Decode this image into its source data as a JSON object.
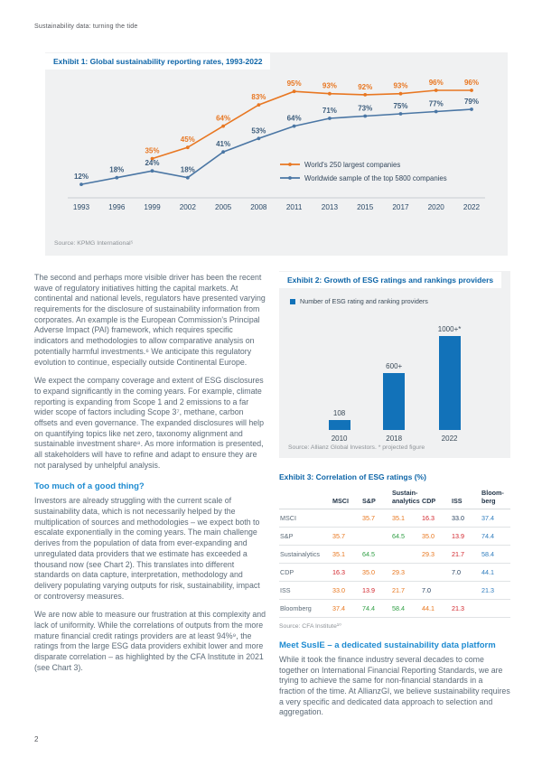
{
  "page": {
    "header": "Sustainability data: turning the tide",
    "page_number": "2"
  },
  "colors": {
    "exhibit_title_blue": "#0d65a8",
    "section_heading_blue": "#1e8bd1",
    "orange_series": "#e87722",
    "blue_series": "#4a76a4",
    "bar_blue": "#1272b9",
    "exhibit_background": "#f0f1f2"
  },
  "left_column": {
    "para1": "The second and perhaps more visible driver has been the recent wave of regulatory initiatives hitting the capital markets. At continental and national levels, regulators have presented varying requirements for the disclosure of sustainability information from corporates. An example is the European Commission's Principal Adverse Impact (PAI) framework, which requires specific indicators and methodologies to allow comparative analysis on potentially harmful investments.⁶ We anticipate this regulatory evolution to continue, especially outside Continental Europe.",
    "para2": "We expect the company coverage and extent of ESG disclosures to expand significantly in the coming years. For example, climate reporting is expanding from Scope 1 and 2 emissions to a far wider scope of factors including Scope 3⁷, methane, carbon offsets and even governance. The expanded disclosures will help on quantifying topics like net zero, taxonomy alignment and sustainable investment share⁸. As more information is presented, all stakeholders will have to refine and adapt to ensure they are not paralysed by unhelpful analysis.",
    "heading1": "Too much of a good thing?",
    "para3": "Investors are already struggling with the current scale of sustainability data, which is not necessarily helped by the multiplication of sources and methodologies – we expect both to escalate exponentially in the coming years. The main challenge derives from the population of data from ever-expanding and unregulated data providers that we estimate has exceeded a thousand now (see Chart 2). This translates into different standards on data capture, interpretation, methodology and delivery populating varying outputs for risk, sustainability, impact or controversy measures.",
    "para4": "We are now able to measure our frustration at this complexity and lack of uniformity. While the correlations of outputs from the more mature financial credit ratings providers are at least 94%⁹, the ratings from the large ESG data providers exhibit lower and more disparate correlation – as highlighted by the CFA Institute in 2021 (see Chart 3)."
  },
  "right_column": {
    "heading2": "Meet SusIE – a dedicated sustainability data platform",
    "para5": "While it took the finance industry several decades to come together on International Financial Reporting Standards, we are trying to achieve the same for non-financial standards in a fraction of the time. At AllianzGI, we believe sustainability requires a very specific and dedicated data approach to selection and aggregation."
  },
  "chart_data": [
    {
      "type": "line",
      "title": "Exhibit 1: Global sustainability reporting rates, 1993-2022",
      "x": [
        "1993",
        "1996",
        "1999",
        "2002",
        "2005",
        "2008",
        "2011",
        "2013",
        "2015",
        "2017",
        "2020",
        "2022"
      ],
      "series": [
        {
          "name": "World's 250 largest companies",
          "color": "#e87722",
          "label_color": "#e87722",
          "values": [
            null,
            null,
            35,
            45,
            64,
            83,
            95,
            93,
            92,
            93,
            96,
            96
          ]
        },
        {
          "name": "Worldwide sample of the top 5800 companies",
          "color": "#4a76a4",
          "label_color": "#3d5d7c",
          "values": [
            12,
            18,
            24,
            18,
            41,
            53,
            64,
            71,
            73,
            75,
            77,
            79
          ]
        }
      ],
      "ylim": [
        0,
        100
      ],
      "value_suffix": "%",
      "grid": false,
      "legend_position": "right-middle",
      "source": "Source: KPMG International⁵"
    },
    {
      "type": "bar",
      "title": "Exhibit 2: Growth of ESG ratings and rankings providers",
      "legend": "Number of ESG rating and ranking providers",
      "categories": [
        "2010",
        "2018",
        "2022"
      ],
      "values": [
        108,
        600,
        1000
      ],
      "value_labels": [
        "108",
        "600+",
        "1000+*"
      ],
      "bar_color": "#1272b9",
      "ylim": [
        0,
        1100
      ],
      "source": "Source: Allianz Global Investors. * projected figure"
    },
    {
      "type": "table",
      "title": "Exhibit 3: Correlation of ESG ratings (%)",
      "columns": [
        "",
        "MSCI",
        "S&P",
        [
          "Sustain-",
          "analytics"
        ],
        "CDP",
        "ISS",
        [
          "Bloom-",
          "berg"
        ]
      ],
      "rows": [
        {
          "label": "MSCI",
          "cells": [
            null,
            {
              "v": "35.7",
              "c": "orange"
            },
            {
              "v": "35.1",
              "c": "orange"
            },
            {
              "v": "16.3",
              "c": "red"
            },
            {
              "v": "33.0",
              "c": "navy"
            },
            {
              "v": "37.4",
              "c": "blue"
            }
          ]
        },
        {
          "label": "S&P",
          "cells": [
            {
              "v": "35.7",
              "c": "orange"
            },
            null,
            {
              "v": "64.5",
              "c": "green"
            },
            {
              "v": "35.0",
              "c": "orange"
            },
            {
              "v": "13.9",
              "c": "red"
            },
            {
              "v": "74.4",
              "c": "blue"
            }
          ]
        },
        {
          "label": "Sustainalytics",
          "cells": [
            {
              "v": "35.1",
              "c": "orange"
            },
            {
              "v": "64.5",
              "c": "green"
            },
            null,
            {
              "v": "29.3",
              "c": "orange"
            },
            {
              "v": "21.7",
              "c": "red"
            },
            {
              "v": "58.4",
              "c": "blue"
            }
          ]
        },
        {
          "label": "CDP",
          "cells": [
            {
              "v": "16.3",
              "c": "red"
            },
            {
              "v": "35.0",
              "c": "orange"
            },
            {
              "v": "29.3",
              "c": "orange"
            },
            null,
            {
              "v": "7.0",
              "c": "navy"
            },
            {
              "v": "44.1",
              "c": "blue"
            }
          ]
        },
        {
          "label": "ISS",
          "cells": [
            {
              "v": "33.0",
              "c": "orange"
            },
            {
              "v": "13.9",
              "c": "red"
            },
            {
              "v": "21.7",
              "c": "orange"
            },
            {
              "v": "7.0",
              "c": "navy"
            },
            null,
            {
              "v": "21.3",
              "c": "blue"
            }
          ]
        },
        {
          "label": "Bloomberg",
          "cells": [
            {
              "v": "37.4",
              "c": "orange"
            },
            {
              "v": "74.4",
              "c": "green"
            },
            {
              "v": "58.4",
              "c": "green"
            },
            {
              "v": "44.1",
              "c": "orange"
            },
            {
              "v": "21.3",
              "c": "red"
            },
            null
          ]
        }
      ],
      "source": "Source: CFA Institute¹⁰"
    }
  ]
}
